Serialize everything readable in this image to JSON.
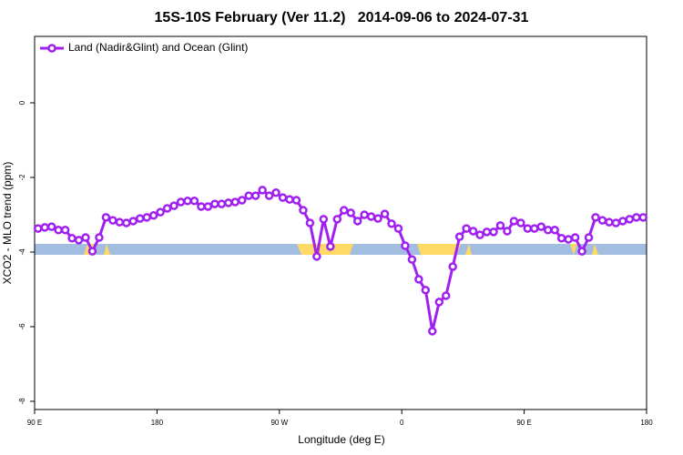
{
  "chart_data": {
    "type": "line",
    "title": "15S-10S February (Ver 11.2)   2014-09-06 to 2024-07-31",
    "x_label": "Longitude (deg E)",
    "y_label": "XCO2 - MLO trend (ppm)",
    "xlim": [
      90,
      540
    ],
    "ylim": [
      -8.22,
      1.78
    ],
    "xticks": [
      {
        "value": 90,
        "label": "90 E"
      },
      {
        "value": 180,
        "label": "180"
      },
      {
        "value": 270,
        "label": "90 W"
      },
      {
        "value": 360,
        "label": "0"
      },
      {
        "value": 450,
        "label": "90 E"
      },
      {
        "value": 540,
        "label": "180"
      }
    ],
    "yticks": [
      0,
      -2,
      -4,
      -6,
      -8
    ],
    "legend_position": "top-left",
    "x": [
      92.5,
      97.5,
      102.5,
      107.5,
      112.5,
      117.5,
      122.5,
      127.5,
      132.5,
      137.5,
      142.5,
      147.5,
      152.5,
      157.5,
      162.5,
      167.5,
      172.5,
      177.5,
      182.5,
      187.5,
      192.5,
      197.5,
      202.5,
      207.5,
      212.5,
      217.5,
      222.5,
      227.5,
      232.5,
      237.5,
      242.5,
      247.5,
      252.5,
      257.5,
      262.5,
      267.5,
      272.5,
      277.5,
      282.5,
      287.5,
      292.5,
      297.5,
      302.5,
      307.5,
      312.5,
      317.5,
      322.5,
      327.5,
      332.5,
      337.5,
      342.5,
      347.5,
      352.5,
      357.5,
      362.5,
      367.5,
      372.5,
      377.5,
      382.5,
      387.5,
      392.5,
      397.5,
      402.5,
      407.5,
      412.5,
      417.5,
      422.5,
      427.5,
      432.5,
      437.5,
      442.5,
      447.5,
      452.5,
      457.5,
      462.5,
      467.5,
      472.5,
      477.5,
      482.5,
      487.5,
      492.5,
      497.5,
      502.5,
      507.5,
      512.5,
      517.5,
      522.5,
      527.5,
      532.5,
      537.5
    ],
    "series": [
      {
        "name": "Land (Nadir&Glint) and Ocean (Glint)",
        "color": "#a020f0",
        "values": [
          -3.37,
          -3.34,
          -3.32,
          -3.41,
          -3.41,
          -3.63,
          -3.68,
          -3.61,
          -3.98,
          -3.61,
          -3.07,
          -3.15,
          -3.2,
          -3.22,
          -3.17,
          -3.1,
          -3.07,
          -3.02,
          -2.93,
          -2.83,
          -2.76,
          -2.66,
          -2.63,
          -2.63,
          -2.78,
          -2.78,
          -2.71,
          -2.71,
          -2.68,
          -2.66,
          -2.61,
          -2.49,
          -2.49,
          -2.34,
          -2.49,
          -2.41,
          -2.54,
          -2.59,
          -2.61,
          -2.88,
          -3.22,
          -4.12,
          -3.12,
          -3.85,
          -3.12,
          -2.88,
          -2.95,
          -3.17,
          -3.0,
          -3.05,
          -3.1,
          -2.98,
          -3.24,
          -3.37,
          -3.83,
          -4.2,
          -4.73,
          -5.02,
          -6.12,
          -5.34,
          -5.17,
          -4.39,
          -3.59,
          -3.37,
          -3.44,
          -3.54,
          -3.46,
          -3.46,
          -3.29,
          -3.44,
          -3.17,
          -3.22,
          -3.37,
          -3.37,
          -3.32,
          -3.41,
          -3.41,
          -3.63,
          -3.66,
          -3.61,
          -3.98,
          -3.61,
          -3.07,
          -3.15,
          -3.2,
          -3.22,
          -3.17,
          -3.12,
          -3.07,
          -3.07
        ]
      }
    ]
  }
}
